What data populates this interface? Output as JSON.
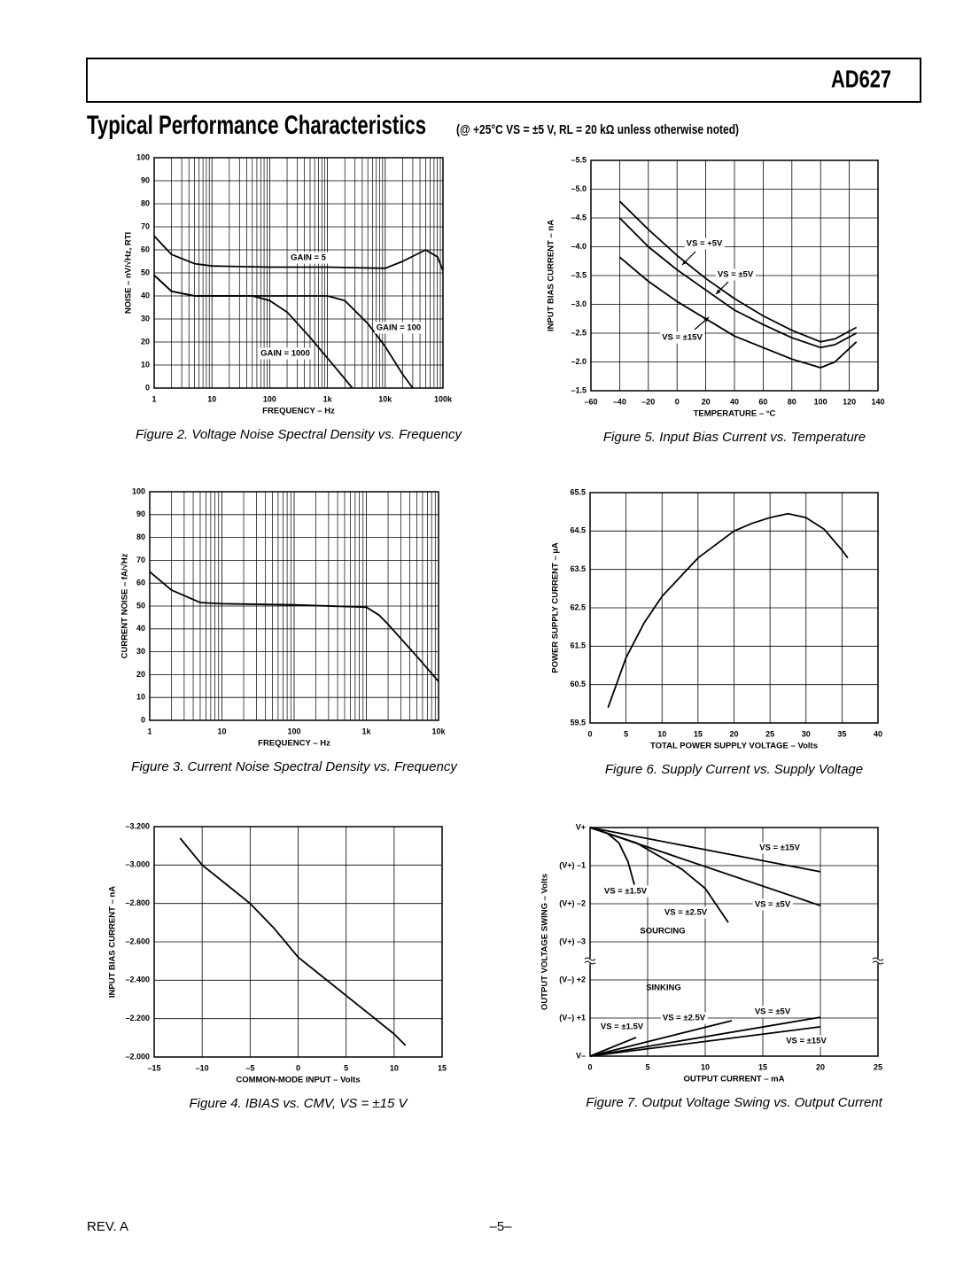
{
  "header": {
    "product": "AD627",
    "title": "Typical Performance Characteristics",
    "subtitle": "(@ +25°C VS = ±5 V, RL = 20 kΩ unless otherwise noted)"
  },
  "chart_data": [
    {
      "type": "line",
      "caption": "Figure 2.  Voltage Noise Spectral Density vs. Frequency",
      "x_label": "FREQUENCY – Hz",
      "y_label": "NOISE – nV/√Hz, RTI",
      "xscale": "log",
      "xlim": [
        1,
        100000
      ],
      "ylim": [
        0,
        100
      ],
      "grid": true,
      "xticks": [
        1,
        10,
        100,
        {
          "value": 1000,
          "label": "1k"
        },
        {
          "value": 10000,
          "label": "10k"
        },
        {
          "value": 100000,
          "label": "100k"
        }
      ],
      "yticks": [
        0,
        10,
        20,
        30,
        40,
        50,
        60,
        70,
        80,
        90,
        100
      ],
      "series": [
        {
          "name": "GAIN = 5",
          "color": "#000000",
          "x": [
            1,
            2,
            5,
            10,
            100,
            1000,
            10000,
            20000,
            50000,
            80000,
            100000
          ],
          "values": [
            66,
            58,
            54,
            53,
            52.5,
            52.5,
            52,
            55,
            60,
            57,
            51
          ]
        },
        {
          "name": "GAIN = 100",
          "color": "#000000",
          "x": [
            1,
            2,
            5,
            100,
            1000,
            2000,
            5000,
            10000,
            20000,
            30000
          ],
          "values": [
            49,
            42,
            40,
            40,
            40,
            38,
            28,
            18,
            6,
            0
          ]
        },
        {
          "name": "GAIN = 1000",
          "color": "#000000",
          "x": [
            1,
            2,
            5,
            50,
            100,
            200,
            500,
            1000,
            2000,
            2700
          ],
          "values": [
            49,
            42,
            40,
            40,
            38,
            33,
            22,
            13,
            4,
            0
          ]
        }
      ]
    },
    {
      "type": "line",
      "caption": "Figure 5.  Input Bias Current vs. Temperature",
      "x_label": "TEMPERATURE – °C",
      "y_label": "INPUT BIAS CURRENT – nA",
      "xlim": [
        -60,
        140
      ],
      "ylim": [
        -1.5,
        -5.5
      ],
      "grid": true,
      "xticks": [
        {
          "value": -60,
          "label": "–60"
        },
        {
          "value": -40,
          "label": "–40"
        },
        {
          "value": -20,
          "label": "–20"
        },
        0,
        20,
        40,
        60,
        80,
        100,
        120,
        140
      ],
      "yticks": [
        {
          "value": -5.5,
          "label": "–5.5"
        },
        {
          "value": -5.0,
          "label": "–5.0"
        },
        {
          "value": -4.5,
          "label": "–4.5"
        },
        {
          "value": -4.0,
          "label": "–4.0"
        },
        {
          "value": -3.5,
          "label": "–3.5"
        },
        {
          "value": -3.0,
          "label": "–3.0"
        },
        {
          "value": -2.5,
          "label": "–2.5"
        },
        {
          "value": -2.0,
          "label": "–2.0"
        },
        {
          "value": -1.5,
          "label": "–1.5"
        }
      ],
      "series": [
        {
          "name": "VS = +5V",
          "color": "#000000",
          "x": [
            -40,
            -20,
            0,
            20,
            40,
            60,
            80,
            100,
            110,
            125
          ],
          "values": [
            -4.79,
            -4.3,
            -3.85,
            -3.45,
            -3.1,
            -2.8,
            -2.55,
            -2.35,
            -2.4,
            -2.6
          ]
        },
        {
          "name": "VS = ±5V",
          "color": "#000000",
          "x": [
            -40,
            -20,
            0,
            20,
            40,
            60,
            80,
            100,
            110,
            125
          ],
          "values": [
            -4.5,
            -4.0,
            -3.6,
            -3.25,
            -2.9,
            -2.65,
            -2.42,
            -2.25,
            -2.3,
            -2.5
          ]
        },
        {
          "name": "VS = ±15V",
          "color": "#000000",
          "x": [
            -40,
            -20,
            0,
            20,
            40,
            60,
            80,
            100,
            110,
            125
          ],
          "values": [
            -3.82,
            -3.4,
            -3.05,
            -2.75,
            -2.45,
            -2.25,
            -2.05,
            -1.9,
            -2.0,
            -2.35
          ]
        }
      ]
    },
    {
      "type": "line",
      "caption": "Figure 3.  Current Noise Spectral Density vs. Frequency",
      "x_label": "FREQUENCY – Hz",
      "y_label": "CURRENT NOISE – fA/√Hz",
      "xscale": "log",
      "xlim": [
        1,
        10000
      ],
      "ylim": [
        0,
        100
      ],
      "grid": true,
      "xticks": [
        1,
        10,
        100,
        {
          "value": 1000,
          "label": "1k"
        },
        {
          "value": 10000,
          "label": "10k"
        }
      ],
      "yticks": [
        0,
        10,
        20,
        30,
        40,
        50,
        60,
        70,
        80,
        90,
        100
      ],
      "color": "#000000",
      "x": [
        1,
        2,
        5,
        10,
        100,
        1000,
        1500,
        2000,
        5000,
        10000
      ],
      "values": [
        65,
        57,
        51.5,
        51,
        50.5,
        49.5,
        46,
        42,
        28,
        17
      ]
    },
    {
      "type": "line",
      "caption": "Figure 6.  Supply Current vs. Supply Voltage",
      "x_label": "TOTAL POWER SUPPLY VOLTAGE – Volts",
      "y_label": "POWER SUPPLY CURRENT – µA",
      "xlim": [
        0,
        40
      ],
      "ylim": [
        59.5,
        65.5
      ],
      "grid": true,
      "xticks": [
        0,
        5,
        10,
        15,
        20,
        25,
        30,
        35,
        40
      ],
      "yticks": [
        59.5,
        60.5,
        61.5,
        62.5,
        63.5,
        64.5,
        65.5
      ],
      "color": "#000000",
      "x": [
        2.5,
        5,
        7.5,
        10,
        15,
        20,
        22.5,
        25,
        27.5,
        30,
        32.5,
        35,
        35.8
      ],
      "values": [
        59.9,
        61.2,
        62.1,
        62.8,
        63.8,
        64.5,
        64.7,
        64.85,
        64.95,
        64.85,
        64.55,
        64.0,
        63.8
      ]
    },
    {
      "type": "line",
      "caption": "Figure 4.  IBIAS vs. CMV, VS = ±15 V",
      "x_label": "COMMON-MODE INPUT – Volts",
      "y_label": "INPUT BIAS CURRENT – nA",
      "xlim": [
        -15,
        15
      ],
      "ylim": [
        -2.0,
        -3.2
      ],
      "grid": true,
      "xticks": [
        {
          "value": -15,
          "label": "–15"
        },
        {
          "value": -10,
          "label": "–10"
        },
        {
          "value": -5,
          "label": "–5"
        },
        0,
        5,
        10,
        15
      ],
      "yticks": [
        {
          "value": -3.2,
          "label": "–3.200"
        },
        {
          "value": -3.0,
          "label": "–3.000"
        },
        {
          "value": -2.8,
          "label": "–2.800"
        },
        {
          "value": -2.6,
          "label": "–2.600"
        },
        {
          "value": -2.4,
          "label": "–2.400"
        },
        {
          "value": -2.2,
          "label": "–2.200"
        },
        {
          "value": -2.0,
          "label": "–2.000"
        }
      ],
      "color": "#000000",
      "x": [
        -12.3,
        -10,
        -7.5,
        -5,
        -2.5,
        0,
        2.5,
        5,
        7.5,
        10,
        11.2
      ],
      "values": [
        -3.14,
        -3.0,
        -2.9,
        -2.8,
        -2.67,
        -2.52,
        -2.42,
        -2.32,
        -2.22,
        -2.12,
        -2.06
      ]
    },
    {
      "type": "line",
      "caption": "Figure 7.  Output Voltage Swing vs. Output Current",
      "x_label": "OUTPUT CURRENT – mA",
      "y_label": "OUTPUT VOLTAGE SWING – Volts",
      "xlim": [
        0,
        25
      ],
      "ylim": [
        0,
        6
      ],
      "grid": true,
      "xticks": [
        0,
        5,
        10,
        15,
        20,
        25
      ],
      "yticks": [
        {
          "value": 6,
          "label": "V+"
        },
        {
          "value": 5,
          "label": "(V+) –1"
        },
        {
          "value": 4,
          "label": "(V+) –2"
        },
        {
          "value": 3,
          "label": "(V+) –3"
        },
        {
          "value": 2,
          "label": "(V–) +2"
        },
        {
          "value": 1,
          "label": "(V–) +1"
        },
        {
          "value": 0,
          "label": "V–"
        }
      ],
      "annotations": [
        "SOURCING",
        "SINKING"
      ],
      "series": [
        {
          "name": "VS = ±15V",
          "color": "#000000",
          "x": [
            0,
            20
          ],
          "values": [
            6,
            4.84
          ]
        },
        {
          "name": "VS = ±5V",
          "color": "#000000",
          "x": [
            0,
            20
          ],
          "values": [
            6,
            3.95
          ]
        },
        {
          "name": "VS = ±2.5V",
          "color": "#000000",
          "x": [
            0,
            4,
            8,
            10,
            12
          ],
          "values": [
            6,
            5.6,
            4.9,
            4.4,
            3.51
          ]
        },
        {
          "name": "VS = ±1.5V",
          "color": "#000000",
          "x": [
            0,
            1.5,
            2.5,
            3.3,
            3.85
          ],
          "values": [
            6,
            5.85,
            5.6,
            5.1,
            4.5
          ]
        },
        {
          "name": "VS = ±15V",
          "color": "#000000",
          "x": [
            0,
            20
          ],
          "values": [
            0,
            0.77
          ]
        },
        {
          "name": "VS = ±5V",
          "color": "#000000",
          "x": [
            0,
            20
          ],
          "values": [
            0,
            1.02
          ]
        },
        {
          "name": "VS = ±2.5V",
          "color": "#000000",
          "x": [
            0,
            12.3
          ],
          "values": [
            0,
            0.93
          ]
        },
        {
          "name": "VS = ±1.5V",
          "color": "#000000",
          "x": [
            0,
            4
          ],
          "values": [
            0,
            0.49
          ]
        }
      ]
    }
  ],
  "footer": {
    "revision": "REV. A",
    "page": "–5–"
  }
}
